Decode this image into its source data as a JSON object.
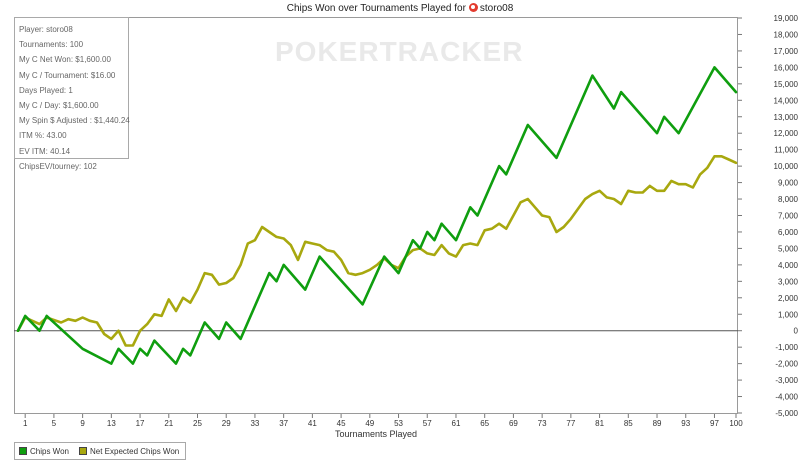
{
  "header": {
    "title_prefix": "Chips Won over Tournaments Played for",
    "player_name": "storo08",
    "player_icon": "pokerstars-logo"
  },
  "watermark": "POKERTRACKER",
  "stats": [
    "Player: storo08",
    "Tournaments: 100",
    "My C Net Won: $1,600.00",
    "My C / Tournament: $16.00",
    "Days Played: 1",
    "My C / Day: $1,600.00",
    "My Spin $ Adjusted : $1,440.24",
    "ITM %: 43.00",
    "EV ITM: 40.14",
    "ChipsEV/tourney: 102"
  ],
  "legend": [
    {
      "label": "Chips Won",
      "color": "#0f9e0f"
    },
    {
      "label": "Net Expected Chips Won",
      "color": "#a8a80f"
    }
  ],
  "chart_data": {
    "type": "line",
    "title": "Chips Won over Tournaments Played for storo08",
    "xlabel": "Tournaments Played",
    "ylabel": "",
    "xlim": [
      0,
      100
    ],
    "ylim": [
      -5000,
      19000
    ],
    "x_ticks": [
      1,
      5,
      9,
      13,
      17,
      21,
      25,
      29,
      33,
      37,
      41,
      45,
      49,
      53,
      57,
      61,
      65,
      69,
      73,
      77,
      81,
      85,
      89,
      93,
      97,
      100
    ],
    "y_ticks": [
      -5000,
      -4000,
      -3000,
      -2000,
      -1000,
      0,
      1000,
      2000,
      3000,
      4000,
      5000,
      6000,
      7000,
      8000,
      9000,
      10000,
      11000,
      12000,
      13000,
      14000,
      15000,
      16000,
      17000,
      18000,
      19000
    ],
    "y_tick_labels": [
      "-5,000",
      "-4,000",
      "-3,000",
      "-2,000",
      "-1,000",
      "0",
      "1,000",
      "2,000",
      "3,000",
      "4,000",
      "5,000",
      "6,000",
      "7,000",
      "8,000",
      "9,000",
      "10,000",
      "11,000",
      "12,000",
      "13,000",
      "14,000",
      "15,000",
      "16,000",
      "17,000",
      "18,000",
      "19,000"
    ],
    "y_axis_side": "right",
    "grid": false,
    "zero_line": true,
    "legend_position": "bottom-left",
    "series": [
      {
        "name": "Chips Won",
        "color": "#0f9e0f",
        "x": [
          0,
          1,
          3,
          4,
          9,
          13,
          14,
          16,
          17,
          18,
          19,
          22,
          23,
          24,
          26,
          28,
          29,
          31,
          35,
          36,
          37,
          40,
          42,
          48,
          51,
          53,
          55,
          56,
          57,
          58,
          59,
          61,
          63,
          64,
          67,
          68,
          71,
          75,
          80,
          83,
          84,
          89,
          90,
          92,
          97,
          100
        ],
        "y": [
          0,
          900,
          0,
          900,
          -1100,
          -2000,
          -1100,
          -2000,
          -1100,
          -1500,
          -600,
          -2000,
          -1100,
          -1500,
          500,
          -500,
          500,
          -500,
          3500,
          3000,
          4000,
          2500,
          4500,
          1600,
          4500,
          3500,
          5500,
          5000,
          6000,
          5500,
          6500,
          5500,
          7500,
          7000,
          10000,
          9500,
          12500,
          10500,
          15500,
          13500,
          14500,
          12000,
          13000,
          12000,
          16000,
          14500
        ]
      },
      {
        "name": "Net Expected Chips Won",
        "color": "#a8a80f",
        "x": [
          0,
          1,
          3,
          4,
          6,
          7,
          8,
          9,
          10,
          11,
          12,
          13,
          14,
          15,
          16,
          17,
          18,
          19,
          20,
          21,
          22,
          23,
          24,
          25,
          26,
          27,
          28,
          29,
          30,
          31,
          32,
          33,
          34,
          35,
          36,
          37,
          38,
          39,
          40,
          41,
          42,
          43,
          44,
          45,
          46,
          47,
          48,
          49,
          50,
          51,
          52,
          53,
          54,
          55,
          56,
          57,
          58,
          59,
          60,
          61,
          62,
          63,
          64,
          65,
          66,
          67,
          68,
          69,
          70,
          71,
          72,
          73,
          74,
          75,
          76,
          77,
          78,
          79,
          80,
          81,
          82,
          83,
          84,
          85,
          86,
          87,
          88,
          89,
          90,
          91,
          92,
          93,
          94,
          95,
          96,
          97,
          98,
          99,
          100
        ],
        "y": [
          0,
          800,
          400,
          800,
          500,
          700,
          600,
          800,
          600,
          500,
          -200,
          -500,
          0,
          -900,
          -900,
          0,
          400,
          1000,
          900,
          1900,
          1200,
          2000,
          1700,
          2500,
          3500,
          3400,
          2800,
          2900,
          3200,
          4000,
          5300,
          5500,
          6300,
          6000,
          5700,
          5600,
          5200,
          4300,
          5400,
          5300,
          5200,
          4900,
          4800,
          4300,
          3500,
          3400,
          3500,
          3700,
          4000,
          4400,
          4000,
          3800,
          4500,
          4900,
          5000,
          4700,
          4600,
          5200,
          4700,
          4500,
          5200,
          5300,
          5200,
          6100,
          6200,
          6500,
          6200,
          7000,
          7800,
          8000,
          7500,
          7000,
          6900,
          6000,
          6300,
          6800,
          7400,
          8000,
          8300,
          8500,
          8100,
          8000,
          7700,
          8500,
          8400,
          8400,
          8800,
          8500,
          8500,
          9100,
          8900,
          8900,
          8700,
          9500,
          9900,
          10600,
          10600,
          10400,
          10200
        ]
      }
    ]
  }
}
